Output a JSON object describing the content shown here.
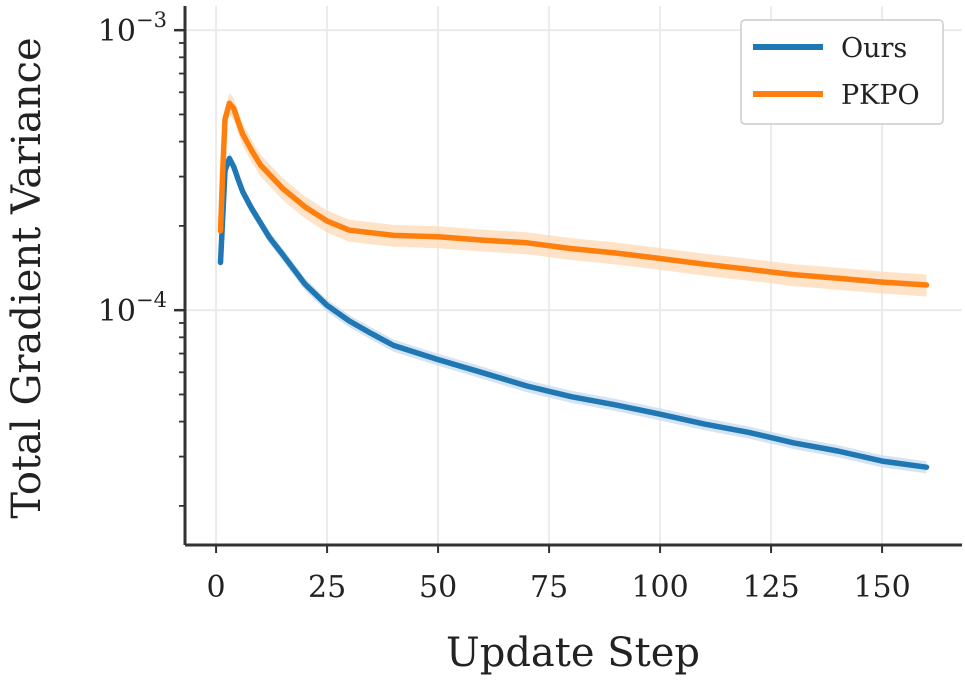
{
  "chart_data": {
    "type": "line",
    "xlabel": "Update Step",
    "ylabel": "Total Gradient Variance",
    "y_scale": "log",
    "xlim": [
      -7,
      168
    ],
    "ylim": [
      1.45e-05,
      0.00122
    ],
    "x_ticks": [
      0,
      25,
      50,
      75,
      100,
      125,
      150
    ],
    "y_ticks": [
      {
        "value": 0.0001,
        "base": "10",
        "exp": "−4"
      },
      {
        "value": 0.001,
        "base": "10",
        "exp": "−3"
      }
    ],
    "grid": true,
    "legend_position": "upper right",
    "series": [
      {
        "name": "Ours",
        "color": "#1f77b4",
        "band_color": "#c6dbef",
        "band_fraction": 0.05,
        "points": [
          [
            1,
            0.000148
          ],
          [
            2,
            0.000315
          ],
          [
            3,
            0.000348
          ],
          [
            4,
            0.000325
          ],
          [
            5,
            0.000292
          ],
          [
            6,
            0.000265
          ],
          [
            8,
            0.000231
          ],
          [
            10,
            0.000205
          ],
          [
            12,
            0.000182
          ],
          [
            15,
            0.000158
          ],
          [
            20,
            0.000124
          ],
          [
            25,
            0.000104
          ],
          [
            30,
            9.15e-05
          ],
          [
            35,
            8.25e-05
          ],
          [
            40,
            7.48e-05
          ],
          [
            50,
            6.66e-05
          ],
          [
            60,
            5.98e-05
          ],
          [
            70,
            5.36e-05
          ],
          [
            80,
            4.91e-05
          ],
          [
            90,
            4.59e-05
          ],
          [
            100,
            4.25e-05
          ],
          [
            110,
            3.92e-05
          ],
          [
            120,
            3.66e-05
          ],
          [
            130,
            3.36e-05
          ],
          [
            140,
            3.14e-05
          ],
          [
            150,
            2.89e-05
          ],
          [
            160,
            2.75e-05
          ]
        ]
      },
      {
        "name": "PKPO",
        "color": "#ff7f0e",
        "band_color": "#fdd9b5",
        "band_fraction": 0.09,
        "points": [
          [
            1,
            0.000192
          ],
          [
            1.5,
            0.000312
          ],
          [
            2,
            0.00048
          ],
          [
            3,
            0.000548
          ],
          [
            4,
            0.000525
          ],
          [
            5,
            0.00047
          ],
          [
            6,
            0.000425
          ],
          [
            8,
            0.000372
          ],
          [
            10,
            0.00033
          ],
          [
            15,
            0.000272
          ],
          [
            20,
            0.000234
          ],
          [
            25,
            0.000208
          ],
          [
            30,
            0.000193
          ],
          [
            40,
            0.000185
          ],
          [
            50,
            0.000183
          ],
          [
            60,
            0.000178
          ],
          [
            70,
            0.000174
          ],
          [
            80,
            0.000166
          ],
          [
            90,
            0.00016
          ],
          [
            100,
            0.000153
          ],
          [
            110,
            0.000146
          ],
          [
            120,
            0.00014
          ],
          [
            130,
            0.000134
          ],
          [
            140,
            0.00013
          ],
          [
            150,
            0.000126
          ],
          [
            160,
            0.000123
          ]
        ]
      }
    ]
  }
}
